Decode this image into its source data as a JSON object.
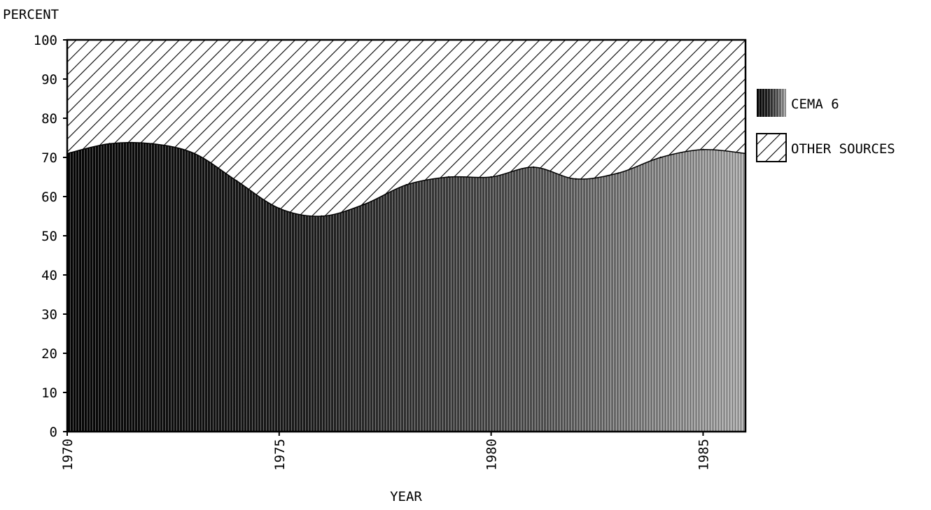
{
  "chart_data": {
    "type": "area",
    "stacked": true,
    "percent": true,
    "x": [
      1970,
      1971,
      1972,
      1973,
      1974,
      1975,
      1976,
      1977,
      1978,
      1979,
      1980,
      1981,
      1982,
      1983,
      1984,
      1985,
      1986
    ],
    "series": [
      {
        "name": "CEMA 6",
        "values": [
          71,
          73.5,
          73.5,
          71,
          64,
          57,
          55,
          58,
          63,
          65,
          65,
          67.5,
          64.5,
          66,
          70,
          72,
          71
        ],
        "fill": "vertical-stipple",
        "color": "#111111"
      },
      {
        "name": "OTHER SOURCES",
        "values": [
          29,
          26.5,
          26.5,
          29,
          36,
          43,
          45,
          42,
          37,
          35,
          35,
          32.5,
          35.5,
          34,
          30,
          28,
          29
        ],
        "fill": "diagonal-hatch",
        "color": "#000000"
      }
    ],
    "ylabel": "PERCENT",
    "xlabel": "YEAR",
    "ylim": [
      0,
      100
    ],
    "xlim": [
      1970,
      1986
    ],
    "yticks": [
      0,
      10,
      20,
      30,
      40,
      50,
      60,
      70,
      80,
      90,
      100
    ],
    "xticks": [
      1970,
      1975,
      1980,
      1985
    ],
    "grid": false,
    "legend": "right"
  }
}
